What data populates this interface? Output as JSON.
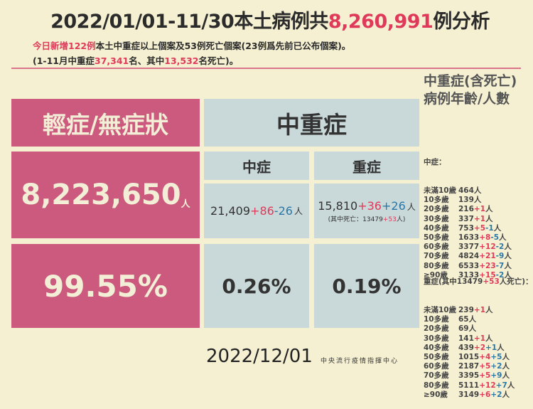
{
  "title": {
    "prefix": "2022/01/01-11/30本土病例共",
    "total": "8,260,991",
    "suffix": "例分析"
  },
  "sub1": {
    "red": "今日新增122例",
    "rest": "本土中重症以上個案及53例死亡個案(23例爲先前已公布個案)。"
  },
  "sub2": {
    "a": "(1-11月中重症",
    "b": "37,341",
    "c": "名、其中",
    "d": "13,532",
    "e": "名死亡)。"
  },
  "mild": {
    "header": "輕症/無症狀",
    "count": "8,223,650",
    "unit": "人",
    "pct": "99.55%"
  },
  "severe_block": {
    "header": "中重症",
    "moderate": {
      "label": "中症",
      "base": "21,409",
      "plus": "+86",
      "minus": "-26",
      "unit": "人",
      "pct": "0.26%"
    },
    "severe": {
      "label": "重症",
      "base": "15,810",
      "plus": "+36",
      "plus2": "+26",
      "unit": "人",
      "death_a": "(其中死亡：13479",
      "death_b": "+53",
      "death_c": "人)",
      "pct": "0.19%"
    }
  },
  "right_panel": {
    "title": "中重症(含死亡)病例年齡/人數",
    "moderate_header": "中症：",
    "moderate_rows": [
      {
        "age": "未滿10歲",
        "base": "464",
        "p": "",
        "m": ""
      },
      {
        "age": "10多歲",
        "base": "139",
        "p": "",
        "m": ""
      },
      {
        "age": "20多歲",
        "base": "216",
        "p": "+1",
        "m": ""
      },
      {
        "age": "30多歲",
        "base": "337",
        "p": "+1",
        "m": ""
      },
      {
        "age": "40多歲",
        "base": "753",
        "p": "+5",
        "m": "-1"
      },
      {
        "age": "50多歲",
        "base": "1633",
        "p": "+8",
        "m": "-5"
      },
      {
        "age": "60多歲",
        "base": "3377",
        "p": "+12",
        "m": "-2"
      },
      {
        "age": "70多歲",
        "base": "4824",
        "p": "+21",
        "m": "-9"
      },
      {
        "age": "80多歲",
        "base": "6533",
        "p": "+23",
        "m": "-7"
      },
      {
        "age": "≥90歲",
        "base": "3133",
        "p": "+15",
        "m": "-2"
      }
    ],
    "severe_header_a": "重症(其中13479",
    "severe_header_b": "+53",
    "severe_header_c": "人死亡)：",
    "severe_rows": [
      {
        "age": "未滿10歲",
        "base": "239",
        "p": "+1",
        "m": ""
      },
      {
        "age": "10多歲",
        "base": "65",
        "p": "",
        "m": ""
      },
      {
        "age": "20多歲",
        "base": "69",
        "p": "",
        "m": ""
      },
      {
        "age": "30多歲",
        "base": "141",
        "p": "+1",
        "m": ""
      },
      {
        "age": "40多歲",
        "base": "439",
        "p": "+2",
        "m": "+1"
      },
      {
        "age": "50多歲",
        "base": "1015",
        "p": "+4",
        "m": "+5"
      },
      {
        "age": "60多歲",
        "base": "2187",
        "p": "+5",
        "m": "+2"
      },
      {
        "age": "70多歲",
        "base": "3395",
        "p": "+5",
        "m": "+9"
      },
      {
        "age": "80多歲",
        "base": "5111",
        "p": "+12",
        "m": "+7"
      },
      {
        "age": "≥90歲",
        "base": "3149",
        "p": "+6",
        "m": "+2"
      }
    ],
    "unit": "人"
  },
  "footer": {
    "date": "2022/12/01",
    "org": "中央流行疫情指揮中心"
  },
  "colors": {
    "pink": "#cb5a7e",
    "gray": "#c9d8d8",
    "red": "#e03a5a",
    "blue": "#2a78a8",
    "bg": "#f5f0d2"
  }
}
